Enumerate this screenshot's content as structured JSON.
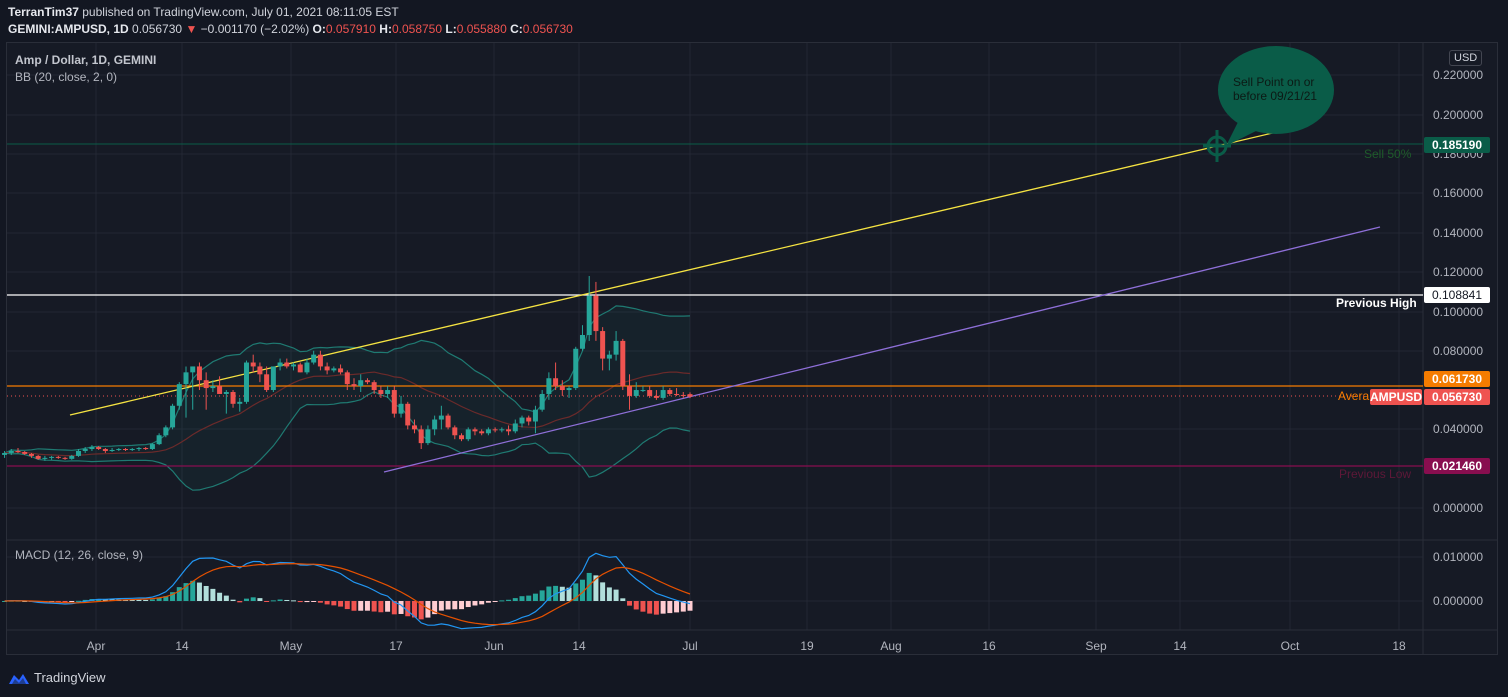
{
  "header": {
    "author": "TerranTim37",
    "published_text": " published on TradingView.com, July 01, 2021 08:11:05 EST",
    "symbol": "GEMINI:AMPUSD, 1D",
    "last": "0.056730",
    "change": "−0.001170 (−2.02%)",
    "o_label": "O:",
    "o": "0.057910",
    "h_label": "H:",
    "h": "0.058750",
    "l_label": "L:",
    "l": "0.055880",
    "c_label": "C:",
    "c": "0.056730"
  },
  "legend": {
    "title": "Amp / Dollar, 1D, GEMINI",
    "bb": "BB (20, close, 2, 0)",
    "macd": "MACD (12, 26, close, 9)"
  },
  "price_axis": {
    "currency": "USD",
    "ticks": [
      "0.220000",
      "0.200000",
      "0.180000",
      "0.160000",
      "0.140000",
      "0.120000",
      "0.100000",
      "0.080000",
      "0.040000",
      "0.000000"
    ],
    "macd_ticks": [
      "0.010000",
      "0.000000"
    ]
  },
  "tags": {
    "sell": "0.185190",
    "prev_high": "0.108841",
    "average": "0.061730",
    "symbol_tag": "AMPUSD",
    "last": "0.056730",
    "prev_low": "0.021460"
  },
  "annotations": {
    "sell_label": "Sell 50%",
    "prev_high_label": "Previous High",
    "average_label": "Avera",
    "prev_low_label": "Previous Low",
    "bubble_line1": "Sell Point on or",
    "bubble_line2": "before 09/21/21"
  },
  "time_axis": [
    "Apr",
    "14",
    "May",
    "17",
    "Jun",
    "14",
    "Jul",
    "19",
    "Aug",
    "16",
    "Sep",
    "14",
    "Oct",
    "18"
  ],
  "footer": {
    "brand": "TradingView"
  },
  "colors": {
    "up": "#26a69a",
    "down": "#ef5350",
    "yellow_trend": "#f5e342",
    "purple_trend": "#8e6fd8",
    "prev_high": "#ffffff",
    "average": "#f57c00",
    "prev_low": "#880e4f",
    "sell": "#0a5c48",
    "macd": "#2196f3",
    "signal": "#e65100"
  },
  "chart_data": {
    "type": "candlestick",
    "title": "Amp / Dollar, 1D, GEMINI",
    "ylabel": "USD",
    "ylim": [
      0.0,
      0.225
    ],
    "x_ticks": [
      "Apr",
      "14",
      "May",
      "17",
      "Jun",
      "14",
      "Jul",
      "19",
      "Aug",
      "16",
      "Sep",
      "14",
      "Oct",
      "18"
    ],
    "horizontal_levels": [
      {
        "label": "Sell 50%",
        "value": 0.18519
      },
      {
        "label": "Previous High",
        "value": 0.108841
      },
      {
        "label": "Average",
        "value": 0.06173
      },
      {
        "label": "Previous Low",
        "value": 0.02146
      }
    ],
    "last_price": 0.05673,
    "ohlc_last": {
      "open": 0.05791,
      "high": 0.05875,
      "low": 0.05588,
      "close": 0.05673
    },
    "candles_ohlc": [
      [
        0.027,
        0.029,
        0.0255,
        0.028
      ],
      [
        0.028,
        0.03,
        0.027,
        0.029
      ],
      [
        0.029,
        0.0305,
        0.028,
        0.0285
      ],
      [
        0.0285,
        0.029,
        0.027,
        0.0275
      ],
      [
        0.0275,
        0.028,
        0.0255,
        0.0265
      ],
      [
        0.0265,
        0.027,
        0.0245,
        0.025
      ],
      [
        0.025,
        0.0265,
        0.024,
        0.0255
      ],
      [
        0.0255,
        0.0265,
        0.0245,
        0.026
      ],
      [
        0.026,
        0.0265,
        0.025,
        0.0255
      ],
      [
        0.0255,
        0.026,
        0.0245,
        0.025
      ],
      [
        0.025,
        0.027,
        0.0245,
        0.0265
      ],
      [
        0.0265,
        0.03,
        0.026,
        0.029
      ],
      [
        0.029,
        0.031,
        0.028,
        0.03
      ],
      [
        0.03,
        0.032,
        0.029,
        0.031
      ],
      [
        0.031,
        0.0315,
        0.0295,
        0.03
      ],
      [
        0.03,
        0.0305,
        0.028,
        0.029
      ],
      [
        0.029,
        0.0305,
        0.0285,
        0.0295
      ],
      [
        0.0295,
        0.0305,
        0.029,
        0.03
      ],
      [
        0.03,
        0.0305,
        0.029,
        0.0295
      ],
      [
        0.0295,
        0.0305,
        0.029,
        0.03
      ],
      [
        0.03,
        0.031,
        0.029,
        0.0305
      ],
      [
        0.0305,
        0.031,
        0.0295,
        0.03
      ],
      [
        0.03,
        0.033,
        0.0295,
        0.0325
      ],
      [
        0.0325,
        0.038,
        0.032,
        0.037
      ],
      [
        0.037,
        0.042,
        0.036,
        0.041
      ],
      [
        0.041,
        0.053,
        0.04,
        0.052
      ],
      [
        0.052,
        0.064,
        0.05,
        0.063
      ],
      [
        0.063,
        0.072,
        0.046,
        0.069
      ],
      [
        0.069,
        0.072,
        0.05,
        0.072
      ],
      [
        0.072,
        0.074,
        0.06,
        0.065
      ],
      [
        0.065,
        0.069,
        0.05,
        0.061
      ],
      [
        0.061,
        0.065,
        0.059,
        0.062
      ],
      [
        0.062,
        0.067,
        0.058,
        0.058
      ],
      [
        0.058,
        0.06,
        0.048,
        0.059
      ],
      [
        0.059,
        0.06,
        0.051,
        0.053
      ],
      [
        0.053,
        0.056,
        0.049,
        0.054
      ],
      [
        0.054,
        0.075,
        0.053,
        0.074
      ],
      [
        0.074,
        0.078,
        0.069,
        0.072
      ],
      [
        0.072,
        0.074,
        0.064,
        0.068
      ],
      [
        0.068,
        0.072,
        0.059,
        0.06
      ],
      [
        0.06,
        0.072,
        0.059,
        0.072
      ],
      [
        0.072,
        0.076,
        0.07,
        0.074
      ],
      [
        0.074,
        0.076,
        0.071,
        0.072
      ],
      [
        0.072,
        0.074,
        0.07,
        0.073
      ],
      [
        0.073,
        0.074,
        0.069,
        0.069
      ],
      [
        0.069,
        0.076,
        0.068,
        0.074
      ],
      [
        0.074,
        0.08,
        0.073,
        0.078
      ],
      [
        0.078,
        0.08,
        0.07,
        0.072
      ],
      [
        0.072,
        0.074,
        0.068,
        0.07
      ],
      [
        0.07,
        0.072,
        0.069,
        0.071
      ],
      [
        0.071,
        0.073,
        0.068,
        0.069
      ],
      [
        0.069,
        0.07,
        0.06,
        0.063
      ],
      [
        0.063,
        0.066,
        0.06,
        0.062
      ],
      [
        0.062,
        0.068,
        0.059,
        0.065
      ],
      [
        0.065,
        0.066,
        0.063,
        0.064
      ],
      [
        0.064,
        0.065,
        0.058,
        0.06
      ],
      [
        0.06,
        0.062,
        0.056,
        0.058
      ],
      [
        0.058,
        0.062,
        0.056,
        0.06
      ],
      [
        0.06,
        0.062,
        0.046,
        0.048
      ],
      [
        0.048,
        0.057,
        0.046,
        0.053
      ],
      [
        0.053,
        0.054,
        0.04,
        0.042
      ],
      [
        0.042,
        0.045,
        0.038,
        0.04
      ],
      [
        0.04,
        0.042,
        0.03,
        0.033
      ],
      [
        0.033,
        0.042,
        0.032,
        0.04
      ],
      [
        0.04,
        0.047,
        0.037,
        0.045
      ],
      [
        0.045,
        0.052,
        0.04,
        0.047
      ],
      [
        0.047,
        0.048,
        0.04,
        0.041
      ],
      [
        0.041,
        0.042,
        0.035,
        0.037
      ],
      [
        0.037,
        0.038,
        0.034,
        0.035
      ],
      [
        0.035,
        0.041,
        0.034,
        0.04
      ],
      [
        0.04,
        0.041,
        0.037,
        0.039
      ],
      [
        0.039,
        0.04,
        0.037,
        0.038
      ],
      [
        0.038,
        0.041,
        0.037,
        0.04
      ],
      [
        0.04,
        0.041,
        0.0385,
        0.0395
      ],
      [
        0.0395,
        0.041,
        0.0385,
        0.04
      ],
      [
        0.04,
        0.042,
        0.037,
        0.039
      ],
      [
        0.039,
        0.045,
        0.038,
        0.043
      ],
      [
        0.043,
        0.047,
        0.041,
        0.046
      ],
      [
        0.046,
        0.047,
        0.042,
        0.044
      ],
      [
        0.044,
        0.052,
        0.038,
        0.05
      ],
      [
        0.05,
        0.06,
        0.049,
        0.058
      ],
      [
        0.058,
        0.069,
        0.055,
        0.066
      ],
      [
        0.066,
        0.074,
        0.06,
        0.062
      ],
      [
        0.062,
        0.065,
        0.057,
        0.06
      ],
      [
        0.06,
        0.062,
        0.056,
        0.061
      ],
      [
        0.061,
        0.082,
        0.06,
        0.081
      ],
      [
        0.081,
        0.093,
        0.08,
        0.088
      ],
      [
        0.088,
        0.118,
        0.085,
        0.108
      ],
      [
        0.108,
        0.115,
        0.085,
        0.09
      ],
      [
        0.09,
        0.092,
        0.07,
        0.076
      ],
      [
        0.076,
        0.08,
        0.07,
        0.078
      ],
      [
        0.078,
        0.09,
        0.075,
        0.085
      ],
      [
        0.085,
        0.086,
        0.06,
        0.062
      ],
      [
        0.062,
        0.068,
        0.05,
        0.057
      ],
      [
        0.057,
        0.064,
        0.056,
        0.06
      ],
      [
        0.06,
        0.062,
        0.059,
        0.06
      ],
      [
        0.06,
        0.062,
        0.056,
        0.057
      ],
      [
        0.057,
        0.06,
        0.055,
        0.056
      ],
      [
        0.056,
        0.062,
        0.055,
        0.06
      ],
      [
        0.06,
        0.061,
        0.057,
        0.058
      ],
      [
        0.058,
        0.061,
        0.057,
        0.0575
      ],
      [
        0.0575,
        0.059,
        0.056,
        0.057
      ],
      [
        0.0579,
        0.0588,
        0.0559,
        0.0567
      ]
    ],
    "trendlines": [
      {
        "name": "upper yellow trendline",
        "from": [
          0.0475,
          "Mar 30"
        ],
        "to": [
          0.193,
          "Sep 25"
        ]
      },
      {
        "name": "lower purple trendline",
        "from": [
          0.018,
          "May 13"
        ],
        "to": [
          0.143,
          "Oct 21"
        ]
      }
    ],
    "macd": {
      "params": "12, 26, close, 9",
      "range": [
        -0.004,
        0.013
      ],
      "ticks": [
        "0.010000",
        "0.000000"
      ]
    }
  }
}
